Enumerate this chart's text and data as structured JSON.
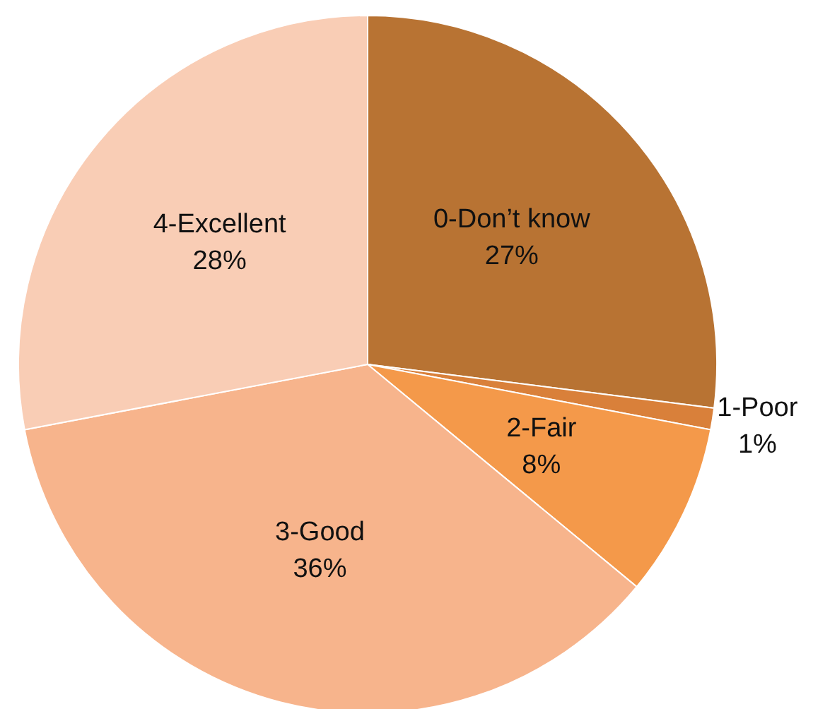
{
  "chart_data": {
    "type": "pie",
    "categories": [
      "0-Don’t know",
      "1-Poor",
      "2-Fair",
      "3-Good",
      "4-Excellent"
    ],
    "values": [
      27,
      1,
      8,
      36,
      28
    ],
    "value_labels": [
      "27%",
      "1%",
      "8%",
      "36%",
      "28%"
    ],
    "colors": [
      "#b87333",
      "#d9803a",
      "#f4994a",
      "#f7b48c",
      "#f9cdb5"
    ]
  }
}
